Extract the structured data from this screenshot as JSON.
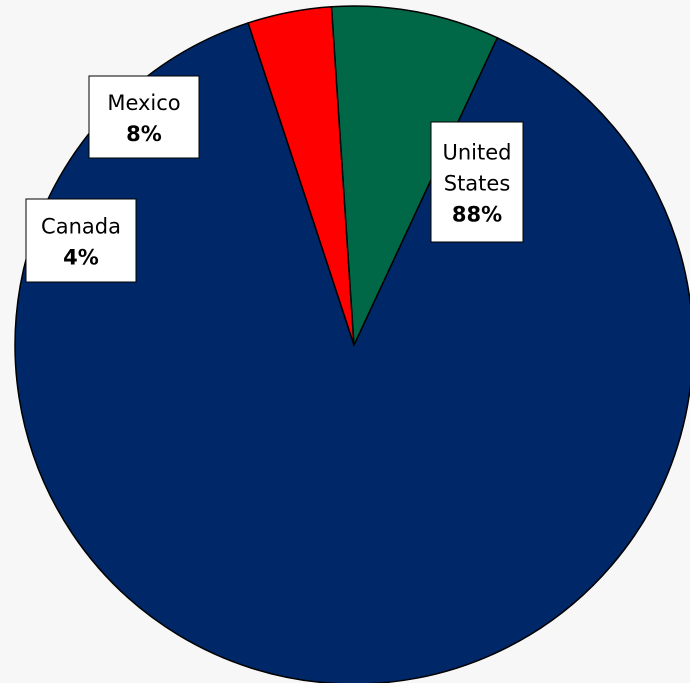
{
  "chart_data": {
    "type": "pie",
    "categories": [
      "United States",
      "Canada",
      "Mexico"
    ],
    "values": [
      88,
      4,
      8
    ],
    "value_labels": [
      "88%",
      "4%",
      "8%"
    ],
    "colors": [
      "#002868",
      "#ff0000",
      "#006847"
    ],
    "slice_label_lines": [
      [
        "United",
        "States"
      ],
      [
        "Canada"
      ],
      [
        "Mexico"
      ]
    ],
    "title": "",
    "legend": "none"
  }
}
